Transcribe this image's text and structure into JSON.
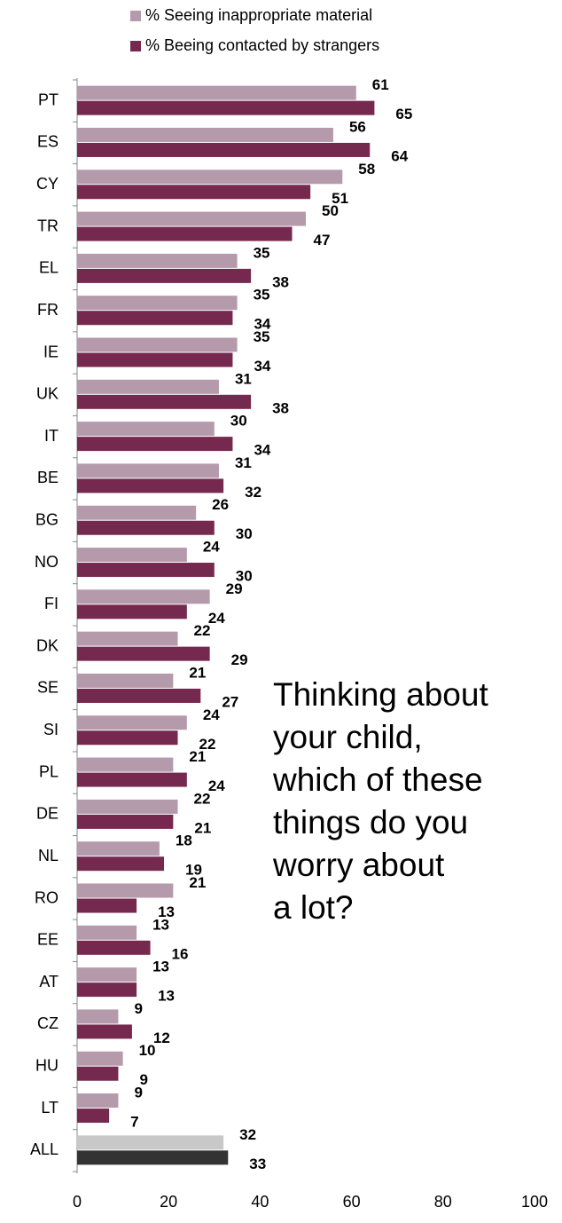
{
  "chart_data": {
    "type": "bar",
    "orientation": "horizontal",
    "categories": [
      "PT",
      "ES",
      "CY",
      "TR",
      "EL",
      "FR",
      "IE",
      "UK",
      "IT",
      "BE",
      "BG",
      "NO",
      "FI",
      "DK",
      "SE",
      "SI",
      "PL",
      "DE",
      "NL",
      "RO",
      "EE",
      "AT",
      "CZ",
      "HU",
      "LT",
      "ALL"
    ],
    "series": [
      {
        "name": "% Seeing inappropriate material",
        "color": "#b59aab",
        "last_color": "#c8c8c8",
        "values": [
          61,
          56,
          58,
          50,
          35,
          35,
          35,
          31,
          30,
          31,
          26,
          24,
          29,
          22,
          21,
          24,
          21,
          22,
          18,
          21,
          13,
          13,
          9,
          10,
          9,
          32
        ]
      },
      {
        "name": "% Beeing contacted by strangers",
        "color": "#76294f",
        "last_color": "#333333",
        "values": [
          65,
          64,
          51,
          47,
          38,
          34,
          34,
          38,
          34,
          32,
          30,
          30,
          24,
          29,
          27,
          22,
          24,
          21,
          19,
          13,
          16,
          13,
          12,
          9,
          7,
          33
        ]
      }
    ],
    "xlim": [
      0,
      100
    ],
    "xticks": [
      0,
      20,
      40,
      60,
      80,
      100
    ],
    "grid": false,
    "legend": "top",
    "annotation": {
      "lines": [
        "Thinking about",
        "your child,",
        "which of these",
        "things do you",
        "worry about",
        "a lot?"
      ],
      "color": "#c8185a"
    }
  }
}
